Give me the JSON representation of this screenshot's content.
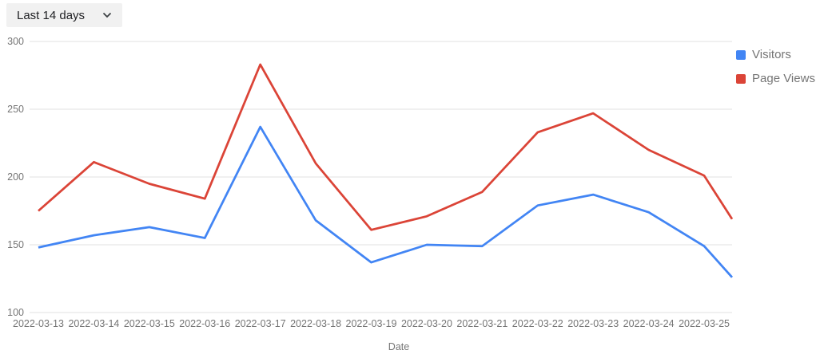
{
  "controls": {
    "range_selector": {
      "label": "Last 14 days"
    }
  },
  "legend": {
    "items": [
      {
        "label": "Visitors",
        "color": "#4285F4"
      },
      {
        "label": "Page Views",
        "color": "#DB4437"
      }
    ]
  },
  "chart_data": {
    "type": "line",
    "title": "",
    "xlabel": "Date",
    "ylabel": "",
    "categories": [
      "2022-03-13",
      "2022-03-14",
      "2022-03-15",
      "2022-03-16",
      "2022-03-17",
      "2022-03-18",
      "2022-03-19",
      "2022-03-20",
      "2022-03-21",
      "2022-03-22",
      "2022-03-23",
      "2022-03-24",
      "2022-03-25"
    ],
    "series": [
      {
        "name": "Visitors",
        "color": "#4285F4",
        "values": [
          148,
          157,
          163,
          155,
          237,
          168,
          137,
          150,
          149,
          179,
          187,
          174,
          149
        ],
        "clipped_edge_value": 126
      },
      {
        "name": "Page Views",
        "color": "#DB4437",
        "values": [
          175,
          211,
          195,
          184,
          283,
          210,
          161,
          171,
          189,
          233,
          247,
          220,
          201
        ],
        "clipped_edge_value": 169
      }
    ],
    "ylim": [
      100,
      300
    ],
    "yticks": [
      100,
      150,
      200,
      250,
      300
    ],
    "grid": "horizontal",
    "gridline_color": "#e0e0e0",
    "axis_text_color": "#757575",
    "legend_position": "right"
  }
}
